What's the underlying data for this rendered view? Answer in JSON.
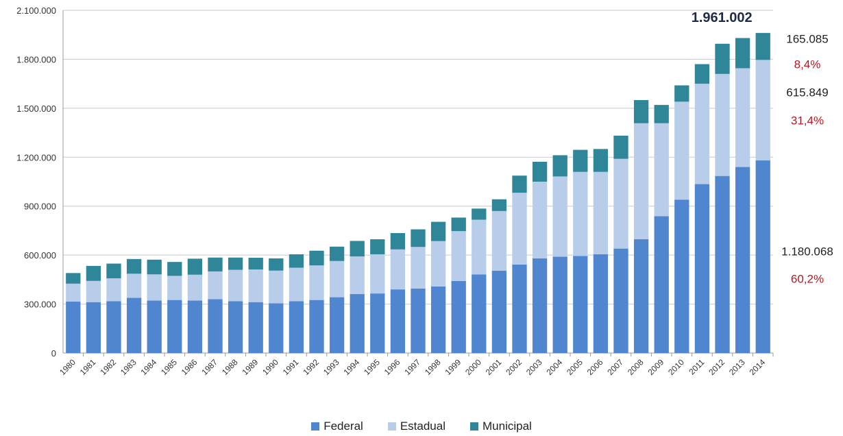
{
  "chart_data": {
    "type": "bar",
    "stacked": true,
    "categories": [
      "1980",
      "1981",
      "1982",
      "1983",
      "1984",
      "1985",
      "1986",
      "1987",
      "1988",
      "1989",
      "1990",
      "1991",
      "1992",
      "1993",
      "1994",
      "1995",
      "1996",
      "1997",
      "1998",
      "1999",
      "2000",
      "2001",
      "2002",
      "2003",
      "2004",
      "2005",
      "2006",
      "2007",
      "2008",
      "2009",
      "2010",
      "2011",
      "2012",
      "2013",
      "2014"
    ],
    "series": [
      {
        "name": "Federal",
        "color": "#4f86cf",
        "values": [
          315000,
          312000,
          318000,
          338000,
          322000,
          325000,
          322000,
          330000,
          318000,
          312000,
          305000,
          318000,
          325000,
          342000,
          362000,
          365000,
          390000,
          395000,
          408000,
          442000,
          482000,
          505000,
          542000,
          580000,
          590000,
          595000,
          605000,
          640000,
          698000,
          838000,
          940000,
          1035000,
          1085000,
          1140000,
          1180068
        ]
      },
      {
        "name": "Estadual",
        "color": "#b7cdea",
        "values": [
          110000,
          130000,
          140000,
          148000,
          160000,
          148000,
          158000,
          170000,
          192000,
          200000,
          200000,
          205000,
          212000,
          222000,
          230000,
          240000,
          245000,
          255000,
          278000,
          305000,
          335000,
          365000,
          440000,
          470000,
          492000,
          515000,
          505000,
          550000,
          710000,
          570000,
          600000,
          615000,
          625000,
          605000,
          615849
        ]
      },
      {
        "name": "Municipal",
        "color": "#2e8698",
        "values": [
          65000,
          92000,
          90000,
          90000,
          90000,
          85000,
          98000,
          85000,
          75000,
          72000,
          75000,
          82000,
          90000,
          88000,
          95000,
          92000,
          100000,
          108000,
          118000,
          83000,
          68000,
          72000,
          105000,
          122000,
          130000,
          135000,
          140000,
          142000,
          142000,
          112000,
          100000,
          120000,
          185000,
          185000,
          165085
        ]
      }
    ],
    "title": "",
    "xlabel": "",
    "ylabel": "",
    "ylim": [
      0,
      2100000
    ],
    "y_ticks": [
      "0",
      "300.000",
      "600.000",
      "900.000",
      "1.200.000",
      "1.500.000",
      "1.800.000",
      "2.100.000"
    ],
    "y_tick_values": [
      0,
      300000,
      600000,
      900000,
      1200000,
      1500000,
      1800000,
      2100000
    ],
    "grid": true,
    "legend_position": "bottom",
    "annotations": {
      "total": "1.961.002",
      "municipal_value": "165.085",
      "municipal_pct": "8,4%",
      "estadual_value": "615.849",
      "estadual_pct": "31,4%",
      "federal_value": "1.180.068",
      "federal_pct": "60,2%"
    },
    "annotation_colors": {
      "value": "#222222",
      "percent": "#c0141d",
      "total": "#1f2a44"
    }
  }
}
